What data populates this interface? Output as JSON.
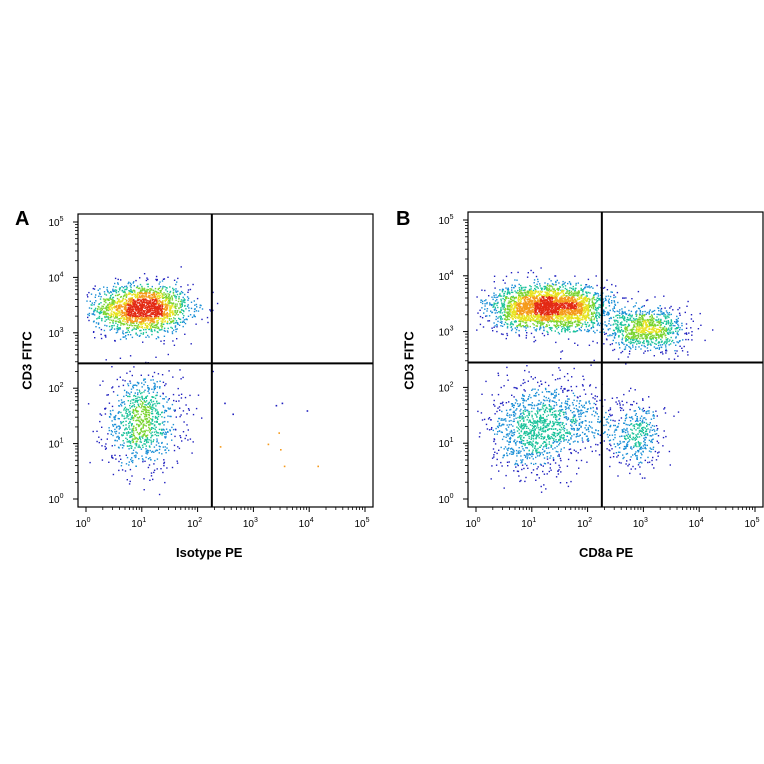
{
  "chart_data": [
    {
      "type": "scatter",
      "panel_label": "A",
      "xlabel": "Isotype PE",
      "ylabel": "CD3 FITC",
      "x_scale": "log",
      "y_scale": "log",
      "xlim": [
        1,
        100000
      ],
      "ylim": [
        1,
        100000
      ],
      "x_ticks": [
        {
          "base": "10",
          "exp": "0"
        },
        {
          "base": "10",
          "exp": "1"
        },
        {
          "base": "10",
          "exp": "2"
        },
        {
          "base": "10",
          "exp": "3"
        },
        {
          "base": "10",
          "exp": "4"
        },
        {
          "base": "10",
          "exp": "5"
        }
      ],
      "y_ticks": [
        {
          "base": "10",
          "exp": "0"
        },
        {
          "base": "10",
          "exp": "1"
        },
        {
          "base": "10",
          "exp": "2"
        },
        {
          "base": "10",
          "exp": "3"
        },
        {
          "base": "10",
          "exp": "4"
        },
        {
          "base": "10",
          "exp": "5"
        }
      ],
      "quadrant_gate": {
        "x": 180,
        "y": 280
      },
      "populations": [
        {
          "x_center": 10,
          "y_center": 2800,
          "x_spread_decades": 0.42,
          "y_spread_decades": 0.22,
          "peak_density": "high"
        },
        {
          "x_center": 10,
          "y_center": 25,
          "x_spread_decades": 0.35,
          "y_spread_decades": 0.42,
          "peak_density": "medium"
        }
      ],
      "sparse_events": [
        {
          "x": 300,
          "y": 55
        },
        {
          "x": 420,
          "y": 35
        },
        {
          "x": 2500,
          "y": 50
        },
        {
          "x": 3200,
          "y": 55
        },
        {
          "x": 2800,
          "y": 16
        },
        {
          "x": 1800,
          "y": 10
        },
        {
          "x": 3000,
          "y": 8
        },
        {
          "x": 9000,
          "y": 40
        },
        {
          "x": 14000,
          "y": 4
        },
        {
          "x": 3500,
          "y": 4
        },
        {
          "x": 250,
          "y": 9
        }
      ],
      "grid": false
    },
    {
      "type": "scatter",
      "panel_label": "B",
      "xlabel": "CD8a PE",
      "ylabel": "CD3 FITC",
      "x_scale": "log",
      "y_scale": "log",
      "xlim": [
        1,
        100000
      ],
      "ylim": [
        1,
        100000
      ],
      "x_ticks": [
        {
          "base": "10",
          "exp": "0"
        },
        {
          "base": "10",
          "exp": "1"
        },
        {
          "base": "10",
          "exp": "2"
        },
        {
          "base": "10",
          "exp": "3"
        },
        {
          "base": "10",
          "exp": "4"
        },
        {
          "base": "10",
          "exp": "5"
        }
      ],
      "y_ticks": [
        {
          "base": "10",
          "exp": "0"
        },
        {
          "base": "10",
          "exp": "1"
        },
        {
          "base": "10",
          "exp": "2"
        },
        {
          "base": "10",
          "exp": "3"
        },
        {
          "base": "10",
          "exp": "4"
        },
        {
          "base": "10",
          "exp": "5"
        }
      ],
      "quadrant_gate": {
        "x": 180,
        "y": 280
      },
      "populations": [
        {
          "x_center": 12,
          "y_center": 2800,
          "x_spread_decades": 0.45,
          "y_spread_decades": 0.2,
          "peak_density": "high"
        },
        {
          "x_center": 60,
          "y_center": 2700,
          "x_spread_decades": 0.35,
          "y_spread_decades": 0.2,
          "peak_density": "medium"
        },
        {
          "x_center": 1100,
          "y_center": 1100,
          "x_spread_decades": 0.35,
          "y_spread_decades": 0.2,
          "peak_density": "medium"
        },
        {
          "x_center": 10,
          "y_center": 18,
          "x_spread_decades": 0.38,
          "y_spread_decades": 0.4,
          "peak_density": "medium"
        },
        {
          "x_center": 50,
          "y_center": 30,
          "x_spread_decades": 0.45,
          "y_spread_decades": 0.35,
          "peak_density": "low"
        },
        {
          "x_center": 700,
          "y_center": 14,
          "x_spread_decades": 0.25,
          "y_spread_decades": 0.3,
          "peak_density": "low"
        }
      ],
      "sparse_events": [],
      "grid": false
    }
  ],
  "colors": {
    "density_scale": [
      "#1f1fbf",
      "#1a8fd6",
      "#19c29a",
      "#7bd431",
      "#e8e320",
      "#f59a1b",
      "#e32a14"
    ],
    "gate_lines": "#000000",
    "frame": "#000000"
  }
}
